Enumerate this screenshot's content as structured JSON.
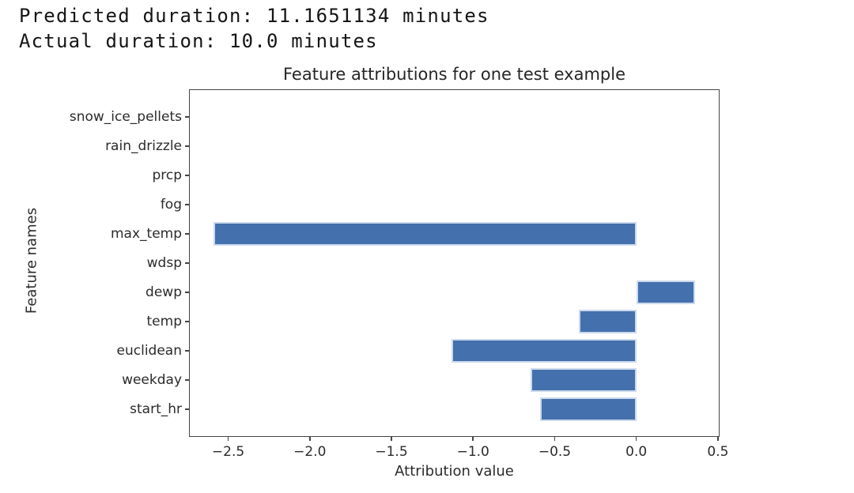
{
  "header": {
    "line1": "Predicted duration: 11.1651134 minutes",
    "line2": "Actual duration: 10.0 minutes"
  },
  "chart_data": {
    "type": "bar",
    "orientation": "horizontal",
    "title": "Feature attributions for one test example",
    "xlabel": "Attribution value",
    "ylabel": "Feature names",
    "categories_top_to_bottom": [
      "snow_ice_pellets",
      "rain_drizzle",
      "prcp",
      "fog",
      "max_temp",
      "wdsp",
      "dewp",
      "temp",
      "euclidean",
      "weekday",
      "start_hr"
    ],
    "values": [
      0,
      0,
      0,
      0,
      -2.59,
      0,
      0.36,
      -0.35,
      -1.13,
      -0.65,
      -0.59
    ],
    "xlim": [
      -2.74,
      0.51
    ],
    "xticks": [
      -2.5,
      -2.0,
      -1.5,
      -1.0,
      -0.5,
      0.0,
      0.5
    ],
    "xtick_labels": [
      "−2.5",
      "−2.0",
      "−1.5",
      "−1.0",
      "−0.5",
      "0.0",
      "0.5"
    ],
    "grid": false,
    "legend_position": "none",
    "bar_color": "#4470ad",
    "bar_edge_color": "#ccd9ec"
  }
}
